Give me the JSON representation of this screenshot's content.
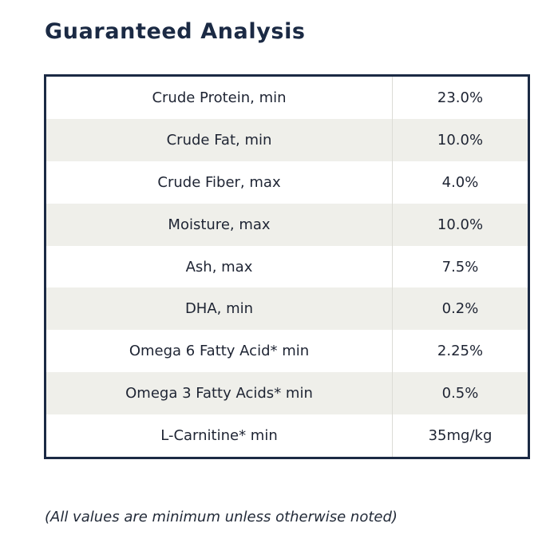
{
  "title": "Guaranteed Analysis",
  "rows": [
    {
      "name": "Crude Protein, min",
      "value": "23.0%"
    },
    {
      "name": "Crude Fat, min",
      "value": "10.0%"
    },
    {
      "name": "Crude Fiber, max",
      "value": "4.0%"
    },
    {
      "name": "Moisture, max",
      "value": "10.0%"
    },
    {
      "name": "Ash, max",
      "value": "7.5%"
    },
    {
      "name": "DHA, min",
      "value": "0.2%"
    },
    {
      "name": "Omega 6 Fatty Acid* min",
      "value": "2.25%"
    },
    {
      "name": "Omega 3 Fatty Acids* min",
      "value": "0.5%"
    },
    {
      "name": "L-Carnitine* min",
      "value": "35mg/kg"
    }
  ],
  "footnote": "(All values are minimum unless otherwise noted)",
  "colors": {
    "border": "#1b2a44",
    "title": "#1b2a44",
    "row_alt": "#efefea",
    "text": "#1e2433"
  }
}
